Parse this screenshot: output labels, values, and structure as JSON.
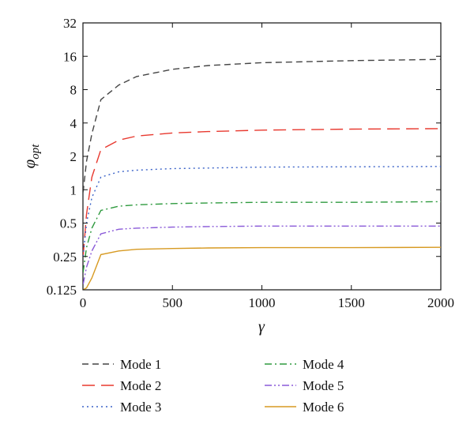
{
  "chart_data": {
    "type": "line",
    "xlabel": "γ",
    "ylabel": "φ",
    "ylabel_sub": "opt",
    "xlim": [
      0,
      2000
    ],
    "ylim": [
      0.125,
      32
    ],
    "yscale": "log2",
    "xticks": [
      "0",
      "500",
      "1000",
      "1500",
      "2000"
    ],
    "yticks": [
      "0.125",
      "0.25",
      "0.5",
      "1",
      "2",
      "4",
      "8",
      "16",
      "32"
    ],
    "grid": false,
    "legend_position": "bottom",
    "x": [
      1,
      20,
      50,
      100,
      200,
      300,
      500,
      700,
      1000,
      1500,
      2000
    ],
    "series": [
      {
        "name": "Mode 1",
        "color": "#444444",
        "dash": "8,5",
        "values": [
          0.95,
          1.8,
          3.2,
          6.5,
          8.8,
          10.5,
          12.2,
          13.2,
          14.0,
          14.6,
          15.0
        ]
      },
      {
        "name": "Mode 2",
        "color": "#e8392f",
        "dash": "16,8",
        "values": [
          0.25,
          0.6,
          1.3,
          2.3,
          2.8,
          3.05,
          3.25,
          3.35,
          3.45,
          3.52,
          3.56
        ]
      },
      {
        "name": "Mode 3",
        "color": "#3a62c8",
        "dash": "2,4",
        "values": [
          0.25,
          0.5,
          0.85,
          1.3,
          1.45,
          1.5,
          1.55,
          1.57,
          1.6,
          1.61,
          1.62
        ]
      },
      {
        "name": "Mode 4",
        "color": "#2e9a3e",
        "dash": "9,4,2,4",
        "values": [
          0.18,
          0.3,
          0.45,
          0.65,
          0.71,
          0.73,
          0.75,
          0.76,
          0.77,
          0.77,
          0.78
        ]
      },
      {
        "name": "Mode 5",
        "color": "#8a5ad8",
        "dash": "9,3,2,3,2,3",
        "values": [
          0.14,
          0.2,
          0.28,
          0.4,
          0.44,
          0.45,
          0.46,
          0.465,
          0.47,
          0.47,
          0.47
        ]
      },
      {
        "name": "Mode 6",
        "color": "#d79a22",
        "dash": "",
        "values": [
          0.125,
          0.13,
          0.16,
          0.26,
          0.28,
          0.29,
          0.295,
          0.298,
          0.3,
          0.3,
          0.302
        ]
      }
    ]
  }
}
